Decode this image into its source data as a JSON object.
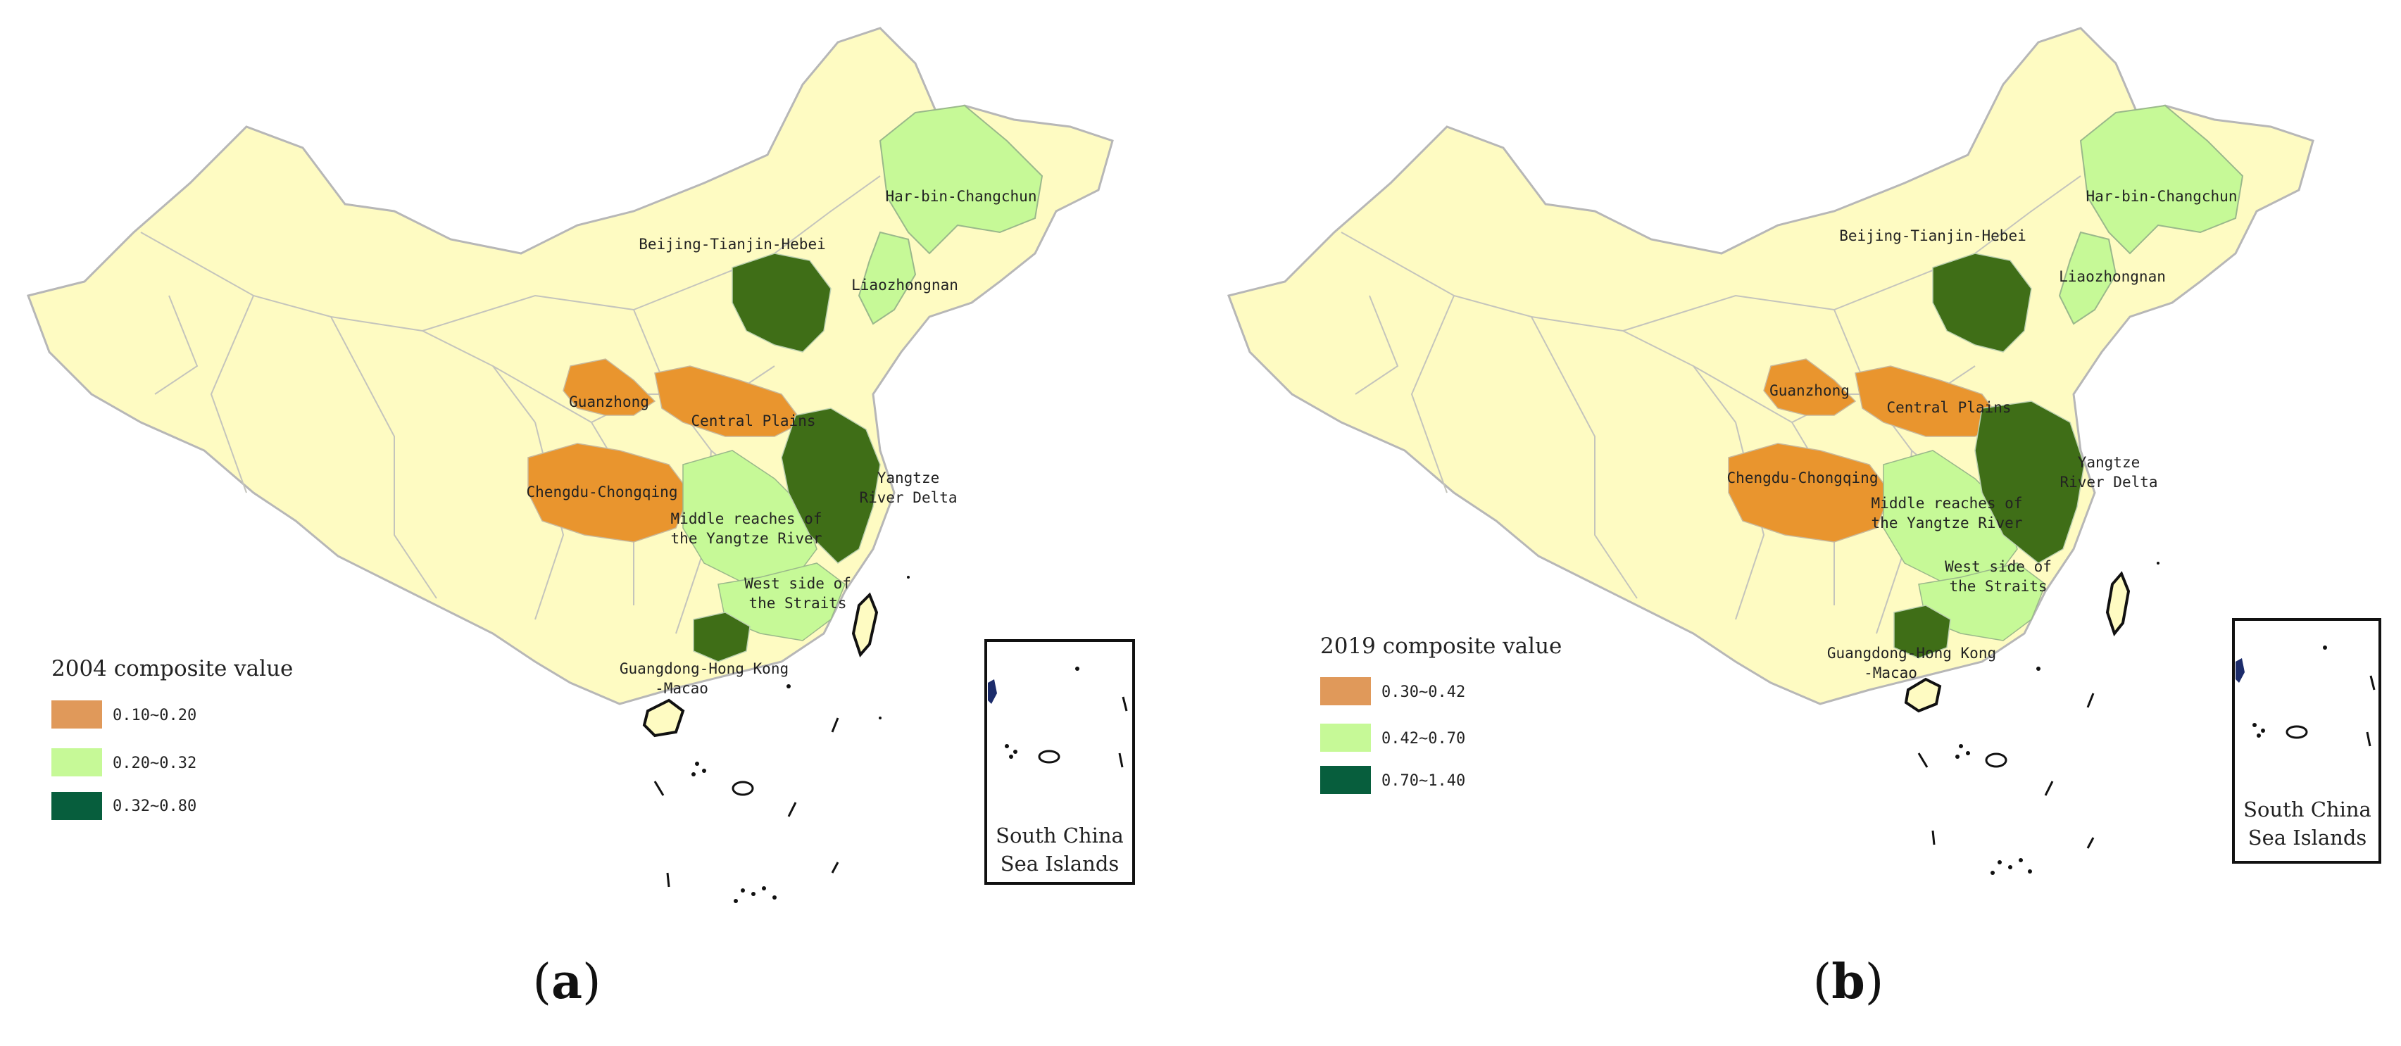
{
  "colors": {
    "background": "#fefbc2",
    "border": "#b7b7b7",
    "low": "#e0995a",
    "mid": "#c6f997",
    "high": "#075e3d",
    "dark_region": "#3f6e17",
    "orange_region": "#e9952e"
  },
  "panels": [
    {
      "id": "a",
      "caption_open": "(",
      "caption_letter": "a",
      "caption_close": ")",
      "legend": {
        "title": "2004 composite value",
        "items": [
          {
            "label": "0.10~0.20",
            "color": "#e0995a"
          },
          {
            "label": "0.20~0.32",
            "color": "#c6f997"
          },
          {
            "label": "0.32~0.80",
            "color": "#075e3d"
          }
        ]
      }
    },
    {
      "id": "b",
      "caption_open": "(",
      "caption_letter": "b",
      "caption_close": ")",
      "legend": {
        "title": "2019 composite value",
        "items": [
          {
            "label": "0.30~0.42",
            "color": "#e0995a"
          },
          {
            "label": "0.42~0.70",
            "color": "#c6f997"
          },
          {
            "label": "0.70~1.40",
            "color": "#075e3d"
          }
        ]
      }
    }
  ],
  "regions": {
    "harbin": "Har-bin-Changchun",
    "beijing": "Beijing-Tianjin-Hebei",
    "liaozhongnan": "Liaozhongnan",
    "guanzhong": "Guanzhong",
    "central_plains": "Central Plains",
    "chengdu": "Chengdu-Chongqing",
    "yangtze_delta_1": "Yangtze",
    "yangtze_delta_2": "River Delta",
    "middle_reaches_1": "Middle reaches of",
    "middle_reaches_2": "the Yangtze River",
    "west_strait_1": "West side of",
    "west_strait_2": "the Straits",
    "guangdong_1": "Guangdong-Hong Kong",
    "guangdong_2": "-Macao"
  },
  "inset": {
    "line1": "South China",
    "line2": "Sea Islands"
  }
}
